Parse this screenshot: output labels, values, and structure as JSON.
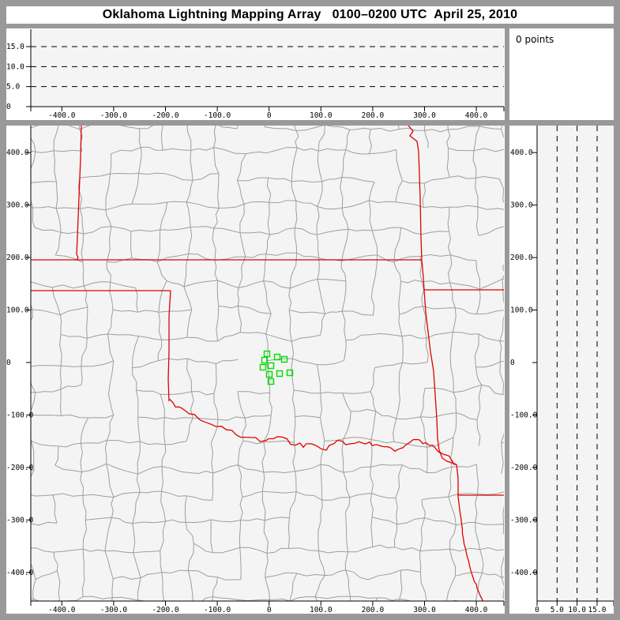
{
  "title": "Oklahoma Lightning Mapping Array   0100–0200 UTC  April 25, 2010",
  "header": {
    "points_count": "0 points"
  },
  "colors": {
    "frame": "#999999",
    "panel": "#ffffff",
    "plot_bg": "#f4f4f4",
    "county_line": "#9e9e9e",
    "state_border": "#e10000",
    "station_marker": "#00dd00",
    "axis": "#000000"
  },
  "chart_data": [
    {
      "id": "altitude-vs-eastwest",
      "type": "scatter",
      "points": [],
      "x_axis": {
        "ticks": [
          -400,
          -300,
          -200,
          -100,
          0,
          100,
          200,
          300,
          400
        ],
        "labels": [
          "-400.0",
          "-300.0",
          "-200.0",
          "-100.0",
          "0",
          "100.0",
          "200.0",
          "300.0",
          "400.0"
        ],
        "range_km": [
          -460,
          453
        ]
      },
      "y_axis": {
        "ticks": [
          0,
          5,
          10,
          15
        ],
        "labels": [
          "0",
          "5.0",
          "10.0",
          "15.0"
        ],
        "range_km": [
          0,
          19
        ],
        "gridlines_dashed": [
          5,
          10,
          15
        ]
      }
    },
    {
      "id": "plan-view-map",
      "type": "scatter",
      "marker": "open-square",
      "points": [],
      "stations_km": [
        [
          -4.1,
          16.6
        ],
        [
          15.7,
          10.5
        ],
        [
          29.4,
          6.0
        ],
        [
          -8.7,
          4.5
        ],
        [
          3.5,
          -6.0
        ],
        [
          -11.7,
          -9.0
        ],
        [
          0.5,
          -22.6
        ],
        [
          20.3,
          -21.1
        ],
        [
          40.1,
          -19.6
        ],
        [
          3.5,
          -36.1
        ]
      ],
      "layers": [
        "county-boundaries",
        "state-boundaries",
        "red-river"
      ],
      "x_axis": {
        "ticks": [
          -400,
          -300,
          -200,
          -100,
          0,
          100,
          200,
          300,
          400
        ],
        "labels": [
          "-400.0",
          "-300.0",
          "-200.0",
          "-100.0",
          "0",
          "100.0",
          "200.0",
          "300.0",
          "400.0"
        ],
        "range_km": [
          -460,
          453
        ]
      },
      "y_axis": {
        "ticks": [
          400,
          300,
          200,
          100,
          0,
          -100,
          -200,
          -300,
          -400
        ],
        "labels": [
          "400.0",
          "300.0",
          "200.0",
          "100.0",
          "0",
          "-100.0",
          "-200.0",
          "-300.0",
          "-400.0"
        ],
        "range_km": [
          -455,
          452
        ]
      }
    },
    {
      "id": "altitude-vs-northsouth",
      "type": "scatter",
      "points": [],
      "x_axis": {
        "ticks": [
          0,
          5,
          10,
          15
        ],
        "labels": [
          "0",
          "5.0",
          "10.0",
          "15.0"
        ],
        "range_km": [
          0,
          19
        ],
        "gridlines_dashed": [
          5,
          10,
          15
        ]
      },
      "y_axis": {
        "ticks": [
          400,
          300,
          200,
          100,
          0,
          -100,
          -200,
          -300,
          -400
        ],
        "labels": [
          "400.0",
          "300.0",
          "200.0",
          "100.0",
          "0",
          "-100.0",
          "-200.0",
          "-300.0",
          "-400.0"
        ],
        "range_km": [
          -455,
          452
        ]
      }
    }
  ]
}
